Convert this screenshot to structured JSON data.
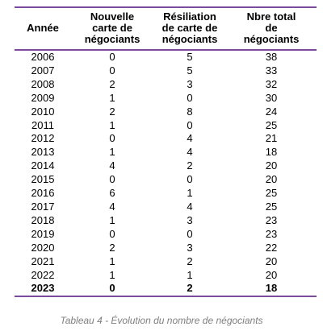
{
  "table": {
    "header": [
      [
        "Année"
      ],
      [
        "Nouvelle",
        "carte de",
        "négociants"
      ],
      [
        "Résiliation",
        "de carte de",
        "négociants"
      ],
      [
        "Nbre total",
        "de",
        "négociants"
      ]
    ],
    "rows": [
      [
        2006,
        0,
        5,
        38
      ],
      [
        2007,
        0,
        5,
        33
      ],
      [
        2008,
        2,
        3,
        32
      ],
      [
        2009,
        1,
        0,
        30
      ],
      [
        2010,
        2,
        8,
        24
      ],
      [
        2011,
        1,
        0,
        25
      ],
      [
        2012,
        0,
        4,
        21
      ],
      [
        2013,
        1,
        4,
        18
      ],
      [
        2014,
        4,
        2,
        20
      ],
      [
        2015,
        0,
        0,
        20
      ],
      [
        2016,
        6,
        1,
        25
      ],
      [
        2017,
        4,
        4,
        25
      ],
      [
        2018,
        1,
        3,
        23
      ],
      [
        2019,
        0,
        0,
        23
      ],
      [
        2020,
        2,
        3,
        22
      ],
      [
        2021,
        1,
        2,
        20
      ],
      [
        2022,
        1,
        1,
        20
      ],
      [
        2023,
        0,
        2,
        18
      ]
    ]
  },
  "caption": "Tableau 4 - Évolution du nombre de négociants"
}
